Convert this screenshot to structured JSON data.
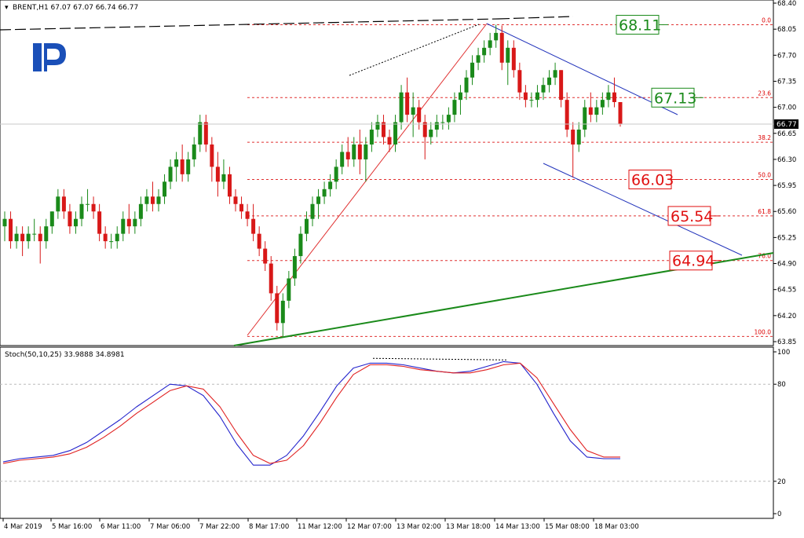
{
  "chart_data": [
    {
      "type": "candlestick",
      "symbol_header": "BRENT,H1  67.07 67.07 66.74 66.77",
      "ohlc": {
        "open": 67.07,
        "high": 67.07,
        "low": 66.74,
        "close": 66.77
      },
      "current_price": "66.77",
      "ylim": [
        63.85,
        68.4
      ],
      "y_ticks": [
        "68.40",
        "68.05",
        "67.70",
        "67.35",
        "67.00",
        "66.65",
        "66.30",
        "65.95",
        "65.60",
        "65.25",
        "64.90",
        "64.55",
        "64.20",
        "63.85"
      ],
      "x_ticks": [
        "4 Mar 2019",
        "5 Mar 16:00",
        "6 Mar 11:00",
        "7 Mar 06:00",
        "7 Mar 22:00",
        "8 Mar 17:00",
        "11 Mar 12:00",
        "12 Mar 07:00",
        "13 Mar 02:00",
        "13 Mar 18:00",
        "14 Mar 13:00",
        "15 Mar 08:00",
        "18 Mar 03:00"
      ],
      "fibonacci_levels": [
        {
          "label": "0.0",
          "price": 68.11
        },
        {
          "label": "23.6",
          "price": 67.13
        },
        {
          "label": "38.2",
          "price": 66.53
        },
        {
          "label": "50.0",
          "price": 66.03
        },
        {
          "label": "61.8",
          "price": 65.54
        },
        {
          "label": "76.0",
          "price": 64.94
        },
        {
          "label": "100.0",
          "price": 63.92
        }
      ],
      "price_boxes": [
        {
          "text": "68.11",
          "color": "#1a8a1a"
        },
        {
          "text": "67.13",
          "color": "#1a8a1a"
        },
        {
          "text": "66.03",
          "color": "#e01010"
        },
        {
          "text": "65.54",
          "color": "#e01010"
        },
        {
          "text": "64.94",
          "color": "#e01010"
        }
      ],
      "candles": [
        [
          65.4,
          65.6,
          65.2,
          65.5
        ],
        [
          65.5,
          65.6,
          65.1,
          65.2
        ],
        [
          65.2,
          65.4,
          65.1,
          65.3
        ],
        [
          65.3,
          65.4,
          65.0,
          65.2
        ],
        [
          65.2,
          65.4,
          65.1,
          65.3
        ],
        [
          65.3,
          65.5,
          65.2,
          65.3
        ],
        [
          65.3,
          65.4,
          64.9,
          65.2
        ],
        [
          65.2,
          65.5,
          65.1,
          65.4
        ],
        [
          65.4,
          65.6,
          65.3,
          65.6
        ],
        [
          65.6,
          65.9,
          65.5,
          65.8
        ],
        [
          65.8,
          65.9,
          65.5,
          65.6
        ],
        [
          65.6,
          65.7,
          65.3,
          65.4
        ],
        [
          65.4,
          65.6,
          65.3,
          65.5
        ],
        [
          65.5,
          65.8,
          65.4,
          65.7
        ],
        [
          65.7,
          65.9,
          65.6,
          65.7
        ],
        [
          65.7,
          65.8,
          65.5,
          65.6
        ],
        [
          65.6,
          65.7,
          65.2,
          65.3
        ],
        [
          65.3,
          65.4,
          65.1,
          65.2
        ],
        [
          65.2,
          65.3,
          65.1,
          65.2
        ],
        [
          65.2,
          65.4,
          65.1,
          65.3
        ],
        [
          65.3,
          65.6,
          65.2,
          65.5
        ],
        [
          65.5,
          65.7,
          65.3,
          65.4
        ],
        [
          65.4,
          65.6,
          65.3,
          65.5
        ],
        [
          65.5,
          65.8,
          65.4,
          65.7
        ],
        [
          65.7,
          65.9,
          65.6,
          65.8
        ],
        [
          65.8,
          66.0,
          65.6,
          65.7
        ],
        [
          65.7,
          65.9,
          65.6,
          65.8
        ],
        [
          65.8,
          66.1,
          65.7,
          66.0
        ],
        [
          66.0,
          66.3,
          65.9,
          66.2
        ],
        [
          66.2,
          66.4,
          66.0,
          66.3
        ],
        [
          66.3,
          66.5,
          66.0,
          66.1
        ],
        [
          66.1,
          66.4,
          66.0,
          66.3
        ],
        [
          66.3,
          66.6,
          66.2,
          66.5
        ],
        [
          66.5,
          66.9,
          66.4,
          66.8
        ],
        [
          66.8,
          66.9,
          66.4,
          66.5
        ],
        [
          66.5,
          66.6,
          66.0,
          66.2
        ],
        [
          66.2,
          66.4,
          65.8,
          66.0
        ],
        [
          66.0,
          66.3,
          65.9,
          66.1
        ],
        [
          66.1,
          66.2,
          65.7,
          65.8
        ],
        [
          65.8,
          65.9,
          65.6,
          65.7
        ],
        [
          65.7,
          65.8,
          65.5,
          65.6
        ],
        [
          65.6,
          65.7,
          65.4,
          65.5
        ],
        [
          65.5,
          65.7,
          65.2,
          65.3
        ],
        [
          65.3,
          65.4,
          65.0,
          65.1
        ],
        [
          65.1,
          65.2,
          64.8,
          64.9
        ],
        [
          64.9,
          65.0,
          64.4,
          64.5
        ],
        [
          64.5,
          64.6,
          64.0,
          64.1
        ],
        [
          64.1,
          64.5,
          63.92,
          64.4
        ],
        [
          64.4,
          64.8,
          64.3,
          64.7
        ],
        [
          64.7,
          65.1,
          64.6,
          65.0
        ],
        [
          65.0,
          65.4,
          64.9,
          65.3
        ],
        [
          65.3,
          65.6,
          65.2,
          65.5
        ],
        [
          65.5,
          65.8,
          65.4,
          65.7
        ],
        [
          65.7,
          65.9,
          65.5,
          65.8
        ],
        [
          65.8,
          66.0,
          65.7,
          65.9
        ],
        [
          65.9,
          66.1,
          65.8,
          66.0
        ],
        [
          66.0,
          66.3,
          65.9,
          66.2
        ],
        [
          66.2,
          66.5,
          66.1,
          66.4
        ],
        [
          66.4,
          66.6,
          66.2,
          66.3
        ],
        [
          66.3,
          66.6,
          66.2,
          66.5
        ],
        [
          66.5,
          66.7,
          66.1,
          66.3
        ],
        [
          66.3,
          66.6,
          66.0,
          66.5
        ],
        [
          66.5,
          66.8,
          66.4,
          66.7
        ],
        [
          66.7,
          66.9,
          66.6,
          66.8
        ],
        [
          66.8,
          66.9,
          66.5,
          66.6
        ],
        [
          66.6,
          66.7,
          66.4,
          66.5
        ],
        [
          66.5,
          66.9,
          66.4,
          66.8
        ],
        [
          66.8,
          67.3,
          66.7,
          67.2
        ],
        [
          67.2,
          67.4,
          66.8,
          66.9
        ],
        [
          66.9,
          67.2,
          66.6,
          67.0
        ],
        [
          67.0,
          67.1,
          66.7,
          66.8
        ],
        [
          66.8,
          66.9,
          66.3,
          66.6
        ],
        [
          66.6,
          66.8,
          66.5,
          66.7
        ],
        [
          66.7,
          66.9,
          66.6,
          66.8
        ],
        [
          66.8,
          66.9,
          66.7,
          66.8
        ],
        [
          66.8,
          67.0,
          66.7,
          66.9
        ],
        [
          66.9,
          67.2,
          66.8,
          67.1
        ],
        [
          67.1,
          67.3,
          66.9,
          67.2
        ],
        [
          67.2,
          67.5,
          67.1,
          67.4
        ],
        [
          67.4,
          67.7,
          67.3,
          67.6
        ],
        [
          67.6,
          67.8,
          67.5,
          67.7
        ],
        [
          67.7,
          67.9,
          67.6,
          67.8
        ],
        [
          67.8,
          68.0,
          67.7,
          67.9
        ],
        [
          67.9,
          68.11,
          67.8,
          68.0
        ],
        [
          68.0,
          68.1,
          67.5,
          67.6
        ],
        [
          67.6,
          67.9,
          67.3,
          67.8
        ],
        [
          67.8,
          67.9,
          67.4,
          67.5
        ],
        [
          67.5,
          67.6,
          67.1,
          67.2
        ],
        [
          67.2,
          67.3,
          67.0,
          67.1
        ],
        [
          67.1,
          67.2,
          67.0,
          67.1
        ],
        [
          67.1,
          67.3,
          67.0,
          67.2
        ],
        [
          67.2,
          67.4,
          67.1,
          67.3
        ],
        [
          67.3,
          67.5,
          67.2,
          67.4
        ],
        [
          67.4,
          67.6,
          67.3,
          67.5
        ],
        [
          67.5,
          67.5,
          67.0,
          67.1
        ],
        [
          67.1,
          67.2,
          66.6,
          66.7
        ],
        [
          66.7,
          66.8,
          66.06,
          66.5
        ],
        [
          66.5,
          66.8,
          66.4,
          66.7
        ],
        [
          66.7,
          67.1,
          66.6,
          67.0
        ],
        [
          67.0,
          67.2,
          66.8,
          66.9
        ],
        [
          66.9,
          67.1,
          66.8,
          67.0
        ],
        [
          67.0,
          67.2,
          66.9,
          67.1
        ],
        [
          67.1,
          67.3,
          67.0,
          67.2
        ],
        [
          67.2,
          67.4,
          67.0,
          67.07
        ],
        [
          67.07,
          67.07,
          66.74,
          66.77
        ]
      ]
    },
    {
      "type": "line",
      "header": "Stoch(50,10,25) 33.9888 34.8981",
      "ylim": [
        0,
        100
      ],
      "y_ticks": [
        "100",
        "80",
        "20",
        "0"
      ],
      "series": [
        {
          "color": "#2222cc",
          "values": [
            32,
            34,
            35,
            36,
            39,
            44,
            51,
            58,
            66,
            73,
            80,
            79,
            73,
            60,
            43,
            30,
            30,
            36,
            48,
            63,
            79,
            90,
            93,
            93,
            92,
            90,
            88,
            87,
            88,
            91,
            94,
            93,
            80,
            62,
            45,
            35,
            34,
            34
          ]
        },
        {
          "color": "#e02020",
          "values": [
            31,
            33,
            34,
            35,
            37,
            41,
            47,
            54,
            62,
            69,
            76,
            79,
            77,
            66,
            50,
            36,
            31,
            33,
            42,
            56,
            72,
            86,
            92,
            92,
            91,
            89,
            88,
            87,
            87,
            89,
            92,
            93,
            84,
            68,
            52,
            39,
            35,
            35
          ]
        }
      ]
    }
  ]
}
